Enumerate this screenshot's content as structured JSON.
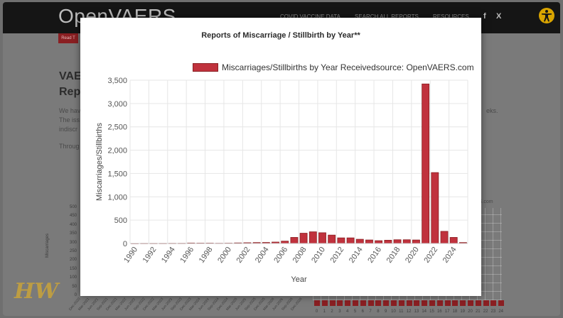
{
  "site": {
    "logo": "OpenVAERS",
    "nav": [
      "COVID VACCINE DATA",
      "SEARCH ALL REPORTS",
      "RESOURCES"
    ],
    "social": [
      "f",
      "X"
    ],
    "red_button": "Read T",
    "bg_title_1": "VAE",
    "bg_title_2": "Rep",
    "bg_para_1": "We hav",
    "bg_para_2": "The iss",
    "bg_para_3": "indiscr",
    "bg_para_4": "Throug",
    "bg_para_right": "eks.",
    "bg_source": "ERS.com",
    "bg_chart_ylabel": "Miscarriages",
    "bg_chart_yticks": [
      "500",
      "450",
      "400",
      "350",
      "300",
      "250",
      "200",
      "150",
      "100",
      "50",
      "0"
    ],
    "bg_chart_dates": [
      "Dec-2020",
      "Mar-2021",
      "Jun-2021",
      "Sep-2021",
      "Dec-2021",
      "Mar-2022",
      "Jun-2022",
      "Sep-2022",
      "Dec-2022",
      "Mar-2023",
      "Jun-2023",
      "Sep-2023",
      "Dec-2023",
      "Mar-2024",
      "Jun-2024",
      "Sep-2024",
      "Dec-2024",
      "Mar-2025",
      "Jun-2025",
      "Sep-2025",
      "Dec-2025",
      "Mar-2026",
      "Jun-2026",
      "Sep-2026",
      "Dec-2026"
    ],
    "bg_chart2_xticks": [
      "0",
      "1",
      "2",
      "3",
      "4",
      "5",
      "6",
      "7",
      "8",
      "9",
      "10",
      "11",
      "12",
      "13",
      "14",
      "15",
      "16",
      "17",
      "18",
      "19",
      "20",
      "21",
      "22",
      "23",
      "24"
    ],
    "watermark": "HW"
  },
  "colors": {
    "bar_fill": "#c0323d",
    "bar_border": "#8a1f22",
    "grid": "#e6e6e6"
  },
  "chart_data": {
    "type": "bar",
    "title": "Reports of Miscarriage / Stillbirth by Year**",
    "legend": "Miscarriages/Stillbirths by Year Receivedsource: OpenVAERS.com",
    "xlabel": "Year",
    "ylabel": "Miscarriages/Stillbirths",
    "ylim": [
      0,
      3500
    ],
    "yticks": [
      "0",
      "500",
      "1,000",
      "1,500",
      "2,000",
      "2,500",
      "3,000",
      "3,500"
    ],
    "ytick_values": [
      0,
      500,
      1000,
      1500,
      2000,
      2500,
      3000,
      3500
    ],
    "xtick_labels": [
      "1990",
      "1992",
      "1994",
      "1996",
      "1998",
      "2000",
      "2002",
      "2004",
      "2006",
      "2008",
      "2010",
      "2012",
      "2014",
      "2016",
      "2018",
      "2020",
      "2022",
      "2024"
    ],
    "categories": [
      "1990",
      "1991",
      "1992",
      "1993",
      "1994",
      "1995",
      "1996",
      "1997",
      "1998",
      "1999",
      "2000",
      "2001",
      "2002",
      "2003",
      "2004",
      "2005",
      "2006",
      "2007",
      "2008",
      "2009",
      "2010",
      "2011",
      "2012",
      "2013",
      "2014",
      "2015",
      "2016",
      "2017",
      "2018",
      "2019",
      "2020",
      "2021",
      "2022",
      "2023",
      "2024",
      "2025"
    ],
    "values": [
      2,
      3,
      3,
      3,
      4,
      4,
      10,
      8,
      8,
      5,
      7,
      12,
      16,
      20,
      22,
      30,
      50,
      130,
      220,
      250,
      230,
      180,
      120,
      120,
      90,
      75,
      60,
      70,
      80,
      80,
      75,
      3420,
      1520,
      260,
      130,
      20
    ],
    "grid": true,
    "legend_position": "top-right"
  }
}
